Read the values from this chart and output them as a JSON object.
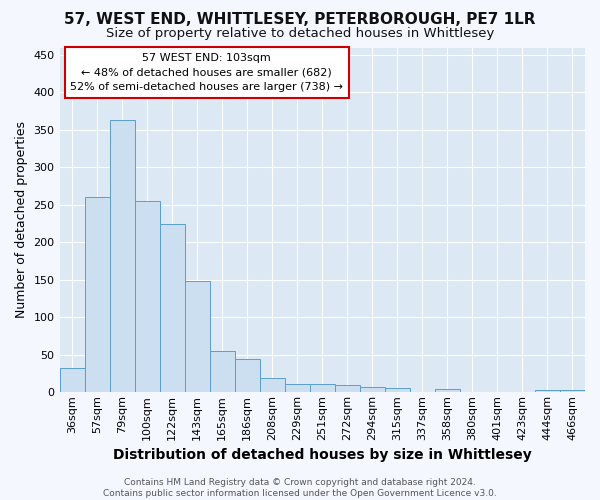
{
  "title": "57, WEST END, WHITTLESEY, PETERBOROUGH, PE7 1LR",
  "subtitle": "Size of property relative to detached houses in Whittlesey",
  "xlabel": "Distribution of detached houses by size in Whittlesey",
  "ylabel": "Number of detached properties",
  "categories": [
    "36sqm",
    "57sqm",
    "79sqm",
    "100sqm",
    "122sqm",
    "143sqm",
    "165sqm",
    "186sqm",
    "208sqm",
    "229sqm",
    "251sqm",
    "272sqm",
    "294sqm",
    "315sqm",
    "337sqm",
    "358sqm",
    "380sqm",
    "401sqm",
    "423sqm",
    "444sqm",
    "466sqm"
  ],
  "values": [
    32,
    260,
    363,
    255,
    224,
    148,
    55,
    44,
    19,
    11,
    11,
    10,
    7,
    6,
    0,
    4,
    0,
    0,
    0,
    3,
    3
  ],
  "bar_color": "#ccdff0",
  "bar_edge_color": "#5a9fc8",
  "plot_bg_color": "#dde8f5",
  "fig_bg_color": "#f5f7ff",
  "grid_color": "#ffffff",
  "annotation_text_line1": "57 WEST END: 103sqm",
  "annotation_text_line2": "← 48% of detached houses are smaller (682)",
  "annotation_text_line3": "52% of semi-detached houses are larger (738) →",
  "annotation_box_facecolor": "#ffffff",
  "annotation_box_edgecolor": "#cc0000",
  "footer_text": "Contains HM Land Registry data © Crown copyright and database right 2024.\nContains public sector information licensed under the Open Government Licence v3.0.",
  "ylim": [
    0,
    460
  ],
  "yticks": [
    0,
    50,
    100,
    150,
    200,
    250,
    300,
    350,
    400,
    450
  ],
  "title_fontsize": 11,
  "subtitle_fontsize": 9.5,
  "ylabel_fontsize": 9,
  "xlabel_fontsize": 10,
  "tick_fontsize": 8,
  "footer_fontsize": 6.5
}
